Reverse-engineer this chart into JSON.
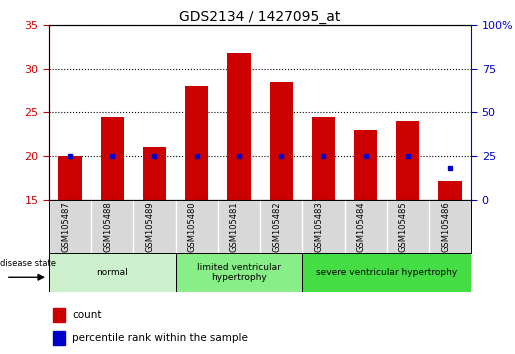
{
  "title": "GDS2134 / 1427095_at",
  "samples": [
    "GSM105487",
    "GSM105488",
    "GSM105489",
    "GSM105480",
    "GSM105481",
    "GSM105482",
    "GSM105483",
    "GSM105484",
    "GSM105485",
    "GSM105486"
  ],
  "counts": [
    20.0,
    24.5,
    21.0,
    28.0,
    31.8,
    28.5,
    24.5,
    23.0,
    24.0,
    17.2
  ],
  "percentiles": [
    25,
    25,
    25,
    25,
    25,
    25,
    25,
    25,
    25,
    18
  ],
  "ylim_left": [
    15,
    35
  ],
  "ylim_right": [
    0,
    100
  ],
  "yticks_left": [
    15,
    20,
    25,
    30,
    35
  ],
  "yticks_right": [
    0,
    25,
    50,
    75,
    100
  ],
  "bar_bottom": 15,
  "bar_color": "#cc0000",
  "percentile_color": "#0000cc",
  "groups": [
    {
      "label": "normal",
      "start": 0,
      "end": 3,
      "color": "#ccf0cc"
    },
    {
      "label": "limited ventricular\nhypertrophy",
      "start": 3,
      "end": 6,
      "color": "#88ee88"
    },
    {
      "label": "severe ventricular hypertrophy",
      "start": 6,
      "end": 10,
      "color": "#44dd44"
    }
  ],
  "disease_state_label": "disease state",
  "legend_count_label": "count",
  "legend_percentile_label": "percentile rank within the sample",
  "left_axis_color": "#cc0000",
  "right_axis_color": "#0000cc",
  "grid_color": "#000000",
  "background_color": "#ffffff",
  "tick_label_area_color": "#d8d8d8",
  "right_ytick_labels": [
    "0",
    "25",
    "50",
    "75",
    "100%"
  ]
}
